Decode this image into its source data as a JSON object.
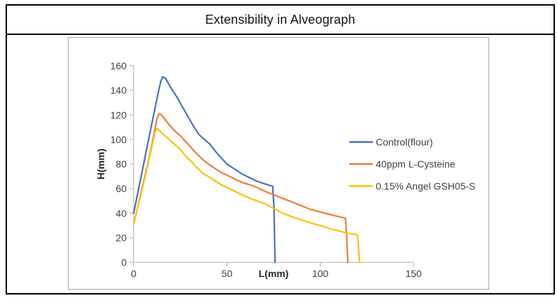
{
  "window": {
    "title": "Extensibility in Alveograph"
  },
  "colors": {
    "outer_border": "#000000",
    "chart_border": "#a6a6a6",
    "axis_line": "#bfbfbf",
    "tick_label_text": "#404040",
    "legend_text": "#404040",
    "title_text": "#111111",
    "series_control": "#4472C4",
    "series_cysteine": "#ED7D31",
    "series_gsh": "#FFC000"
  },
  "chart_data": {
    "type": "line",
    "title": "Extensibility in Alveograph",
    "xlabel": "L(mm)",
    "ylabel": "H(mm)",
    "xlim": [
      0,
      150
    ],
    "ylim": [
      0,
      160
    ],
    "x_ticks": [
      0,
      50,
      100,
      150
    ],
    "y_ticks": [
      0,
      20,
      40,
      60,
      80,
      100,
      120,
      140,
      160
    ],
    "grid": false,
    "legend_position": "right-inside",
    "series": [
      {
        "name": "Control(flour)",
        "color": "#4472C4",
        "peak": [
          15.5,
          151
        ],
        "end_x": 75.8,
        "points": [
          [
            0,
            40
          ],
          [
            4,
            70
          ],
          [
            8,
            100
          ],
          [
            11,
            122
          ],
          [
            13,
            137
          ],
          [
            14.5,
            147
          ],
          [
            15.5,
            151
          ],
          [
            17,
            150
          ],
          [
            18.5,
            146
          ],
          [
            20,
            142
          ],
          [
            23,
            135
          ],
          [
            26,
            127
          ],
          [
            29,
            119
          ],
          [
            32,
            111
          ],
          [
            35,
            104
          ],
          [
            38,
            100
          ],
          [
            41,
            96
          ],
          [
            44,
            90
          ],
          [
            47,
            85
          ],
          [
            50,
            80
          ],
          [
            54,
            76
          ],
          [
            58,
            72
          ],
          [
            62,
            69
          ],
          [
            66,
            66
          ],
          [
            70,
            64
          ],
          [
            73,
            62.5
          ],
          [
            74.5,
            62
          ],
          [
            75.2,
            45
          ],
          [
            75.8,
            0
          ]
        ]
      },
      {
        "name": "40ppm L-Cysteine",
        "color": "#ED7D31",
        "peak": [
          13.5,
          121
        ],
        "end_x": 114.8,
        "points": [
          [
            0,
            31
          ],
          [
            4,
            57
          ],
          [
            8,
            83
          ],
          [
            11,
            105
          ],
          [
            12.5,
            117
          ],
          [
            13.5,
            121
          ],
          [
            15,
            120
          ],
          [
            17,
            116
          ],
          [
            19,
            112
          ],
          [
            22,
            107
          ],
          [
            25,
            103
          ],
          [
            28,
            98
          ],
          [
            31,
            93
          ],
          [
            34,
            88
          ],
          [
            37.5,
            83
          ],
          [
            41,
            79
          ],
          [
            44,
            76
          ],
          [
            47,
            73
          ],
          [
            50,
            71
          ],
          [
            54,
            68
          ],
          [
            58,
            65
          ],
          [
            62.5,
            63
          ],
          [
            66,
            61
          ],
          [
            70,
            58
          ],
          [
            75,
            55
          ],
          [
            80,
            52
          ],
          [
            85,
            49
          ],
          [
            90,
            46
          ],
          [
            95,
            43
          ],
          [
            100,
            41
          ],
          [
            105,
            39
          ],
          [
            109,
            37.5
          ],
          [
            112,
            36.5
          ],
          [
            113.5,
            36
          ],
          [
            114.2,
            20
          ],
          [
            114.8,
            0
          ]
        ]
      },
      {
        "name": "0.15% Angel GSH05-S",
        "color": "#FFC000",
        "peak": [
          12.5,
          109
        ],
        "end_x": 121,
        "points": [
          [
            0,
            31
          ],
          [
            4,
            56
          ],
          [
            8,
            82
          ],
          [
            10,
            96
          ],
          [
            11.5,
            106
          ],
          [
            12.5,
            109
          ],
          [
            14,
            107
          ],
          [
            16,
            104
          ],
          [
            19,
            100
          ],
          [
            22,
            96
          ],
          [
            25,
            92
          ],
          [
            28,
            86
          ],
          [
            31,
            82
          ],
          [
            34,
            77
          ],
          [
            37.5,
            72
          ],
          [
            41,
            69
          ],
          [
            44,
            66
          ],
          [
            47,
            63
          ],
          [
            50,
            61
          ],
          [
            54,
            58
          ],
          [
            58,
            55
          ],
          [
            62.5,
            52
          ],
          [
            66,
            50
          ],
          [
            70,
            48
          ],
          [
            75,
            44
          ],
          [
            80,
            40
          ],
          [
            85,
            37
          ],
          [
            90,
            34.5
          ],
          [
            95,
            32
          ],
          [
            100,
            30
          ],
          [
            105,
            27.5
          ],
          [
            110,
            25.5
          ],
          [
            114,
            24
          ],
          [
            117,
            23.2
          ],
          [
            119,
            22.8
          ],
          [
            120,
            22
          ],
          [
            120.6,
            10
          ],
          [
            121,
            0
          ]
        ]
      }
    ]
  }
}
